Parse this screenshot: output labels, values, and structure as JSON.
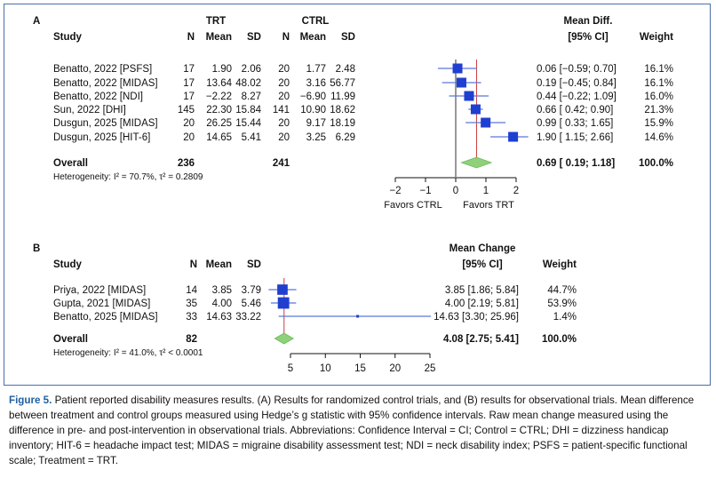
{
  "panel_a": {
    "letter": "A",
    "header": {
      "study": "Study",
      "group1": "TRT",
      "group2": "CTRL",
      "n": "N",
      "mean": "Mean",
      "sd": "SD",
      "effect_line1": "Mean Diff.",
      "effect_line2": "[95% CI]",
      "weight": "Weight"
    },
    "rows": [
      {
        "study": "Benatto, 2022 [PSFS]",
        "n1": "17",
        "mean1": "1.90",
        "sd1": "2.06",
        "n2": "20",
        "mean2": "1.77",
        "sd2": "2.48",
        "ci_text": "0.06 [−0.59; 0.70]",
        "weight": "16.1%"
      },
      {
        "study": "Benatto, 2022 [MIDAS]",
        "n1": "17",
        "mean1": "13.64",
        "sd1": "48.02",
        "n2": "20",
        "mean2": "3.16",
        "sd2": "56.77",
        "ci_text": "0.19 [−0.45; 0.84]",
        "weight": "16.1%"
      },
      {
        "study": "Benatto, 2022 [NDI]",
        "n1": "17",
        "mean1": "−2.22",
        "sd1": "8.27",
        "n2": "20",
        "mean2": "−6.90",
        "sd2": "11.99",
        "ci_text": "0.44 [−0.22; 1.09]",
        "weight": "16.0%"
      },
      {
        "study": "Sun, 2022 [DHI]",
        "n1": "145",
        "mean1": "22.30",
        "sd1": "15.84",
        "n2": "141",
        "mean2": "10.90",
        "sd2": "18.62",
        "ci_text": "0.66 [ 0.42; 0.90]",
        "weight": "21.3%"
      },
      {
        "study": "Dusgun, 2025 [MIDAS]",
        "n1": "20",
        "mean1": "26.25",
        "sd1": "15.44",
        "n2": "20",
        "mean2": "9.17",
        "sd2": "18.19",
        "ci_text": "0.99 [ 0.33; 1.65]",
        "weight": "15.9%"
      },
      {
        "study": "Dusgun, 2025 [HIT-6]",
        "n1": "20",
        "mean1": "14.65",
        "sd1": "5.41",
        "n2": "20",
        "mean2": "3.25",
        "sd2": "6.29",
        "ci_text": "1.90 [ 1.15; 2.66]",
        "weight": "14.6%"
      }
    ],
    "overall": {
      "label": "Overall",
      "n1": "236",
      "n2": "241",
      "ci_text": "0.69 [ 0.19; 1.18]",
      "weight": "100.0%"
    },
    "heterogeneity": "Heterogeneity: I² = 70.7%, τ² = 0.2809",
    "favors_left": "Favors CTRL",
    "favors_right": "Favors TRT"
  },
  "panel_b": {
    "letter": "B",
    "header": {
      "study": "Study",
      "n": "N",
      "mean": "Mean",
      "sd": "SD",
      "effect_line1": "Mean Change",
      "effect_line2": "[95% CI]",
      "weight": "Weight"
    },
    "rows": [
      {
        "study": "Priya, 2022 [MIDAS]",
        "n": "14",
        "mean": "3.85",
        "sd": "3.79",
        "ci_text": "3.85 [1.86; 5.84]",
        "weight": "44.7%"
      },
      {
        "study": "Gupta, 2021 [MIDAS]",
        "n": "35",
        "mean": "4.00",
        "sd": "5.46",
        "ci_text": "4.00 [2.19; 5.81]",
        "weight": "53.9%"
      },
      {
        "study": "Benatto, 2025 [MIDAS]",
        "n": "33",
        "mean": "14.63",
        "sd": "33.22",
        "ci_text": "14.63 [3.30; 25.96]",
        "weight": "1.4%"
      }
    ],
    "overall": {
      "label": "Overall",
      "n": "82",
      "ci_text": "4.08 [2.75; 5.41]",
      "weight": "100.0%"
    },
    "heterogeneity": "Heterogeneity: I² = 41.0%, τ² < 0.0001"
  },
  "colors": {
    "square": "#1f3fd0",
    "ci_line": "#5b78d6",
    "diamond": "#8fd17a",
    "diamond_edge": "#6cb85a",
    "ref_line": "#cc3b3b",
    "axis": "#111111",
    "frame": "#4a6fa8",
    "caption_label": "#1f5fa0"
  },
  "caption": {
    "label": "Figure 5.",
    "text": "Patient reported disability measures results. (A) Results for randomized control trials, and (B) results for observational trials. Mean difference between treatment and control groups measured using Hedge’s g statistic with 95% confidence intervals. Raw mean change measured using the difference in pre- and post-intervention in observational trials. Abbreviations: Confidence Interval = CI; Control = CTRL; DHI = dizziness handicap inventory; HIT-6 = headache impact test; MIDAS = migraine disability assessment test; NDI = neck disability index; PSFS = patient-specific functional scale; Treatment = TRT."
  },
  "chart_data": [
    {
      "type": "forest",
      "panel": "A",
      "xlabel": "",
      "xlim": [
        -2,
        2
      ],
      "xticks": [
        -2,
        -1,
        0,
        1,
        2
      ],
      "xtick_labels": [
        "−2",
        "−1",
        "0",
        "1",
        "2"
      ],
      "null_line": 0,
      "summary_line": 0.69,
      "studies": [
        {
          "label": "Benatto, 2022 [PSFS]",
          "estimate": 0.06,
          "lower": -0.59,
          "upper": 0.7,
          "weight": 16.1
        },
        {
          "label": "Benatto, 2022 [MIDAS]",
          "estimate": 0.19,
          "lower": -0.45,
          "upper": 0.84,
          "weight": 16.1
        },
        {
          "label": "Benatto, 2022 [NDI]",
          "estimate": 0.44,
          "lower": -0.22,
          "upper": 1.09,
          "weight": 16.0
        },
        {
          "label": "Sun, 2022 [DHI]",
          "estimate": 0.66,
          "lower": 0.42,
          "upper": 0.9,
          "weight": 21.3
        },
        {
          "label": "Dusgun, 2025 [MIDAS]",
          "estimate": 0.99,
          "lower": 0.33,
          "upper": 1.65,
          "weight": 15.9
        },
        {
          "label": "Dusgun, 2025 [HIT-6]",
          "estimate": 1.9,
          "lower": 1.15,
          "upper": 2.66,
          "weight": 14.6
        }
      ],
      "overall": {
        "estimate": 0.69,
        "lower": 0.19,
        "upper": 1.18,
        "weight": 100.0
      }
    },
    {
      "type": "forest",
      "panel": "B",
      "xlabel": "",
      "xlim": [
        5,
        25
      ],
      "xticks": [
        5,
        10,
        15,
        20,
        25
      ],
      "xtick_labels": [
        "5",
        "10",
        "15",
        "20",
        "25"
      ],
      "summary_line": 4.08,
      "studies": [
        {
          "label": "Priya, 2022 [MIDAS]",
          "estimate": 3.85,
          "lower": 1.86,
          "upper": 5.84,
          "weight": 44.7
        },
        {
          "label": "Gupta, 2021 [MIDAS]",
          "estimate": 4.0,
          "lower": 2.19,
          "upper": 5.81,
          "weight": 53.9
        },
        {
          "label": "Benatto, 2025 [MIDAS]",
          "estimate": 14.63,
          "lower": 3.3,
          "upper": 25.96,
          "weight": 1.4
        }
      ],
      "overall": {
        "estimate": 4.08,
        "lower": 2.75,
        "upper": 5.41,
        "weight": 100.0
      }
    }
  ]
}
